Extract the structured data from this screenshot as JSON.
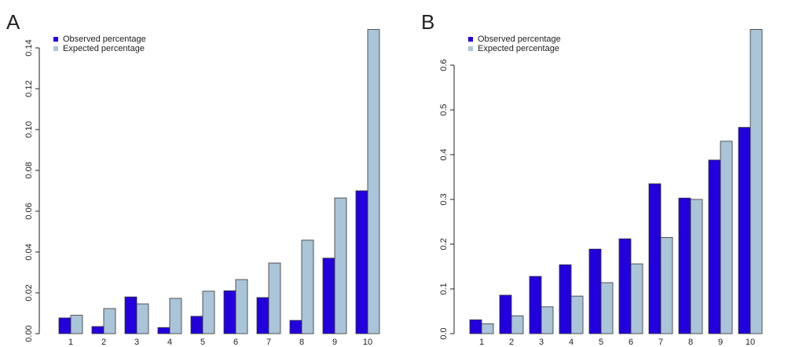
{
  "chart_data": [
    {
      "type": "bar",
      "label": "A",
      "categories": [
        "1",
        "2",
        "3",
        "4",
        "5",
        "6",
        "7",
        "8",
        "9",
        "10"
      ],
      "series": [
        {
          "name": "Observed percentage",
          "color": "#2200dd",
          "values": [
            0.0077,
            0.0035,
            0.018,
            0.003,
            0.0085,
            0.021,
            0.0177,
            0.0065,
            0.037,
            0.07
          ]
        },
        {
          "name": "Expected percentage",
          "color": "#aac4d8",
          "values": [
            0.009,
            0.0123,
            0.0146,
            0.0173,
            0.0208,
            0.0265,
            0.0346,
            0.0458,
            0.0665,
            0.149
          ]
        }
      ],
      "ylim": [
        0,
        0.15
      ],
      "yticks": [
        {
          "value": 0,
          "label": "0.00"
        },
        0.02,
        0.04,
        0.06,
        0.08,
        {
          "value": 0.1,
          "label": "0.10"
        },
        0.12,
        0.14
      ],
      "legend": "top-left"
    },
    {
      "type": "bar",
      "label": "B",
      "categories": [
        "1",
        "2",
        "3",
        "4",
        "5",
        "6",
        "7",
        "8",
        "9",
        "10"
      ],
      "series": [
        {
          "name": "Observed percentage",
          "color": "#2200dd",
          "values": [
            0.031,
            0.086,
            0.128,
            0.154,
            0.189,
            0.212,
            0.335,
            0.303,
            0.388,
            0.461
          ]
        },
        {
          "name": "Expected percentage",
          "color": "#aac4d8",
          "values": [
            0.022,
            0.04,
            0.06,
            0.084,
            0.114,
            0.156,
            0.215,
            0.3,
            0.43,
            0.68
          ]
        }
      ],
      "ylim": [
        0,
        0.7
      ],
      "yticks": [
        {
          "value": 0,
          "label": "0.0"
        },
        0.1,
        0.2,
        0.3,
        0.4,
        0.5,
        0.6
      ],
      "legend": "top-left"
    }
  ]
}
